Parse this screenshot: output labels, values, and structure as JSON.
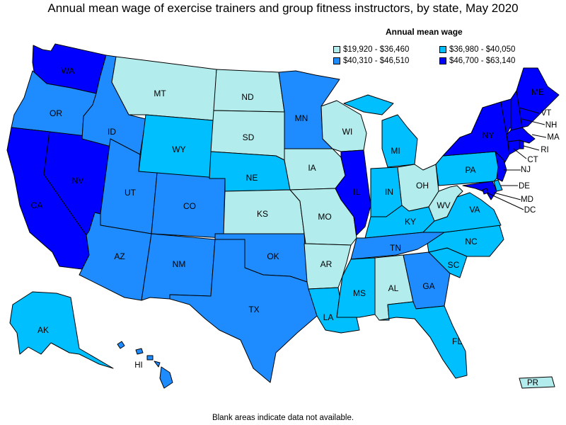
{
  "title": "Annual mean wage of exercise trainers and group fitness instructors, by state, May 2020",
  "legend": {
    "title": "Annual mean wage",
    "bins": [
      {
        "label": "$19,920 - $36,460",
        "color": "#b3ecec"
      },
      {
        "label": "$36,980 - $40,050",
        "color": "#00bfff"
      },
      {
        "label": "$40,310 - $46,510",
        "color": "#1e8cff"
      },
      {
        "label": "$46,700 - $63,140",
        "color": "#0000ff"
      }
    ]
  },
  "footnote": "Blank areas indicate data not available.",
  "states": [
    {
      "abbr": "WA",
      "bin": 3
    },
    {
      "abbr": "OR",
      "bin": 2
    },
    {
      "abbr": "CA",
      "bin": 3
    },
    {
      "abbr": "NV",
      "bin": 3
    },
    {
      "abbr": "ID",
      "bin": 2
    },
    {
      "abbr": "MT",
      "bin": 0
    },
    {
      "abbr": "WY",
      "bin": 1
    },
    {
      "abbr": "UT",
      "bin": 2
    },
    {
      "abbr": "AZ",
      "bin": 2
    },
    {
      "abbr": "CO",
      "bin": 2
    },
    {
      "abbr": "NM",
      "bin": 2
    },
    {
      "abbr": "ND",
      "bin": 0
    },
    {
      "abbr": "SD",
      "bin": 0
    },
    {
      "abbr": "NE",
      "bin": 1
    },
    {
      "abbr": "KS",
      "bin": 0
    },
    {
      "abbr": "OK",
      "bin": 2
    },
    {
      "abbr": "TX",
      "bin": 2
    },
    {
      "abbr": "MN",
      "bin": 2
    },
    {
      "abbr": "IA",
      "bin": 0
    },
    {
      "abbr": "MO",
      "bin": 0
    },
    {
      "abbr": "AR",
      "bin": 0
    },
    {
      "abbr": "LA",
      "bin": 1
    },
    {
      "abbr": "WI",
      "bin": 0
    },
    {
      "abbr": "IL",
      "bin": 3
    },
    {
      "abbr": "MI",
      "bin": 1
    },
    {
      "abbr": "IN",
      "bin": 1
    },
    {
      "abbr": "OH",
      "bin": 0
    },
    {
      "abbr": "KY",
      "bin": 1
    },
    {
      "abbr": "TN",
      "bin": 2
    },
    {
      "abbr": "MS",
      "bin": 1
    },
    {
      "abbr": "AL",
      "bin": 0
    },
    {
      "abbr": "GA",
      "bin": 2
    },
    {
      "abbr": "FL",
      "bin": 1
    },
    {
      "abbr": "SC",
      "bin": 1
    },
    {
      "abbr": "NC",
      "bin": 1
    },
    {
      "abbr": "VA",
      "bin": 1
    },
    {
      "abbr": "WV",
      "bin": 0
    },
    {
      "abbr": "PA",
      "bin": 1
    },
    {
      "abbr": "NY",
      "bin": 3
    },
    {
      "abbr": "NJ",
      "bin": 3
    },
    {
      "abbr": "DE",
      "bin": 1
    },
    {
      "abbr": "MD",
      "bin": 3
    },
    {
      "abbr": "DC",
      "bin": 3
    },
    {
      "abbr": "VT",
      "bin": 3
    },
    {
      "abbr": "NH",
      "bin": 3
    },
    {
      "abbr": "ME",
      "bin": 3
    },
    {
      "abbr": "MA",
      "bin": 3
    },
    {
      "abbr": "RI",
      "bin": 3
    },
    {
      "abbr": "CT",
      "bin": 3
    },
    {
      "abbr": "AK",
      "bin": 1
    },
    {
      "abbr": "HI",
      "bin": 2
    },
    {
      "abbr": "PR",
      "bin": 0
    }
  ]
}
